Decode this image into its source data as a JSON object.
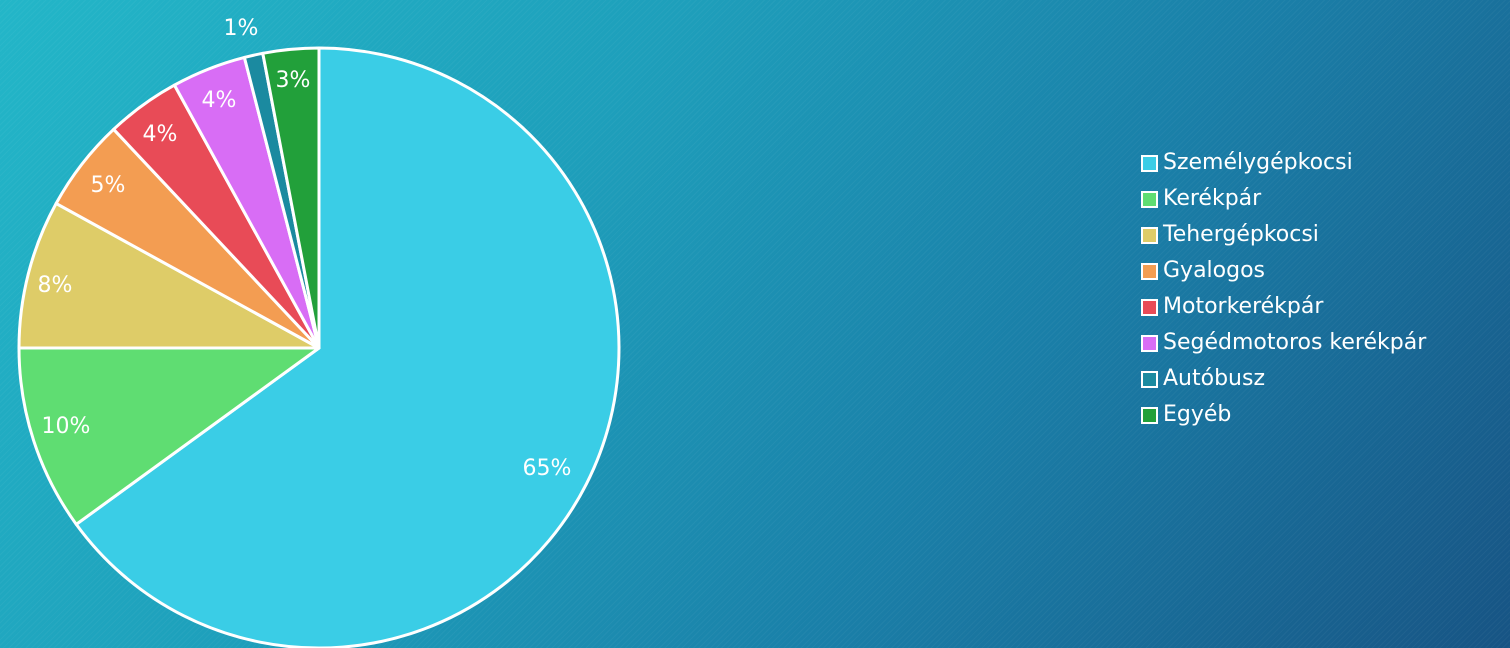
{
  "chart_data": {
    "type": "pie",
    "title": "",
    "slices": [
      {
        "label": "Személygépkocsi",
        "value": 65,
        "display": "65%",
        "color": "#3acde6"
      },
      {
        "label": "Kerékpár",
        "value": 10,
        "display": "10%",
        "color": "#5fdd72"
      },
      {
        "label": "Tehergépkocsi",
        "value": 8,
        "display": "8%",
        "color": "#decc68"
      },
      {
        "label": "Gyalogos",
        "value": 5,
        "display": "5%",
        "color": "#f39d52"
      },
      {
        "label": "Motorkerékpár",
        "value": 4,
        "display": "4%",
        "color": "#e84b57"
      },
      {
        "label": "Segédmotoros kerékpár",
        "value": 4,
        "display": "4%",
        "color": "#d86df5"
      },
      {
        "label": "Autóbusz",
        "value": 1,
        "display": "1%",
        "color": "#1b8aa0"
      },
      {
        "label": "Egyéb",
        "value": 3,
        "display": "3%",
        "color": "#22a03a"
      }
    ],
    "start_angle": "12 o'clock",
    "direction": "clockwise",
    "legend_position": "right",
    "slice_border_color": "#ffffff"
  }
}
